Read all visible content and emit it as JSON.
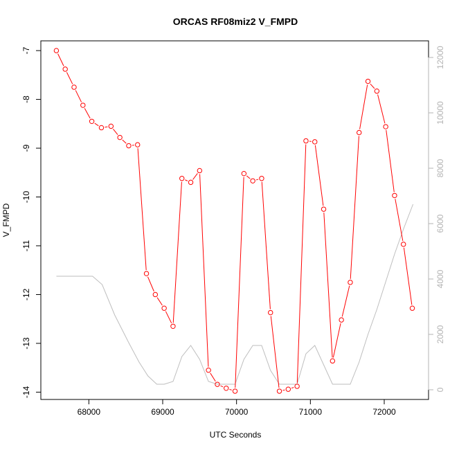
{
  "chart_data": {
    "type": "line",
    "title": "ORCAS RF08miz2 V_FMPD",
    "xlabel": "UTC Seconds",
    "ylabel": "V_FMPD",
    "xlim": [
      67350,
      72600
    ],
    "ylim": [
      -14.15,
      -6.8
    ],
    "y2lim": [
      -350,
      12600
    ],
    "x_ticks": [
      68000,
      69000,
      70000,
      71000,
      72000
    ],
    "y_ticks": [
      -14,
      -13,
      -12,
      -11,
      -10,
      -9,
      -8,
      -7
    ],
    "y2_ticks": [
      0,
      2000,
      4000,
      6000,
      8000,
      10000,
      12000
    ],
    "legend": "none",
    "grid": false,
    "series": [
      {
        "axis": "left",
        "color": "#ff0000",
        "style": "line+circle",
        "x": [
          67560,
          67680,
          67800,
          67920,
          68040,
          68170,
          68300,
          68420,
          68540,
          68660,
          68780,
          68900,
          69020,
          69140,
          69260,
          69380,
          69500,
          69620,
          69740,
          69860,
          69980,
          70100,
          70220,
          70340,
          70460,
          70580,
          70700,
          70820,
          70940,
          71060,
          71180,
          71300,
          71420,
          71540,
          71660,
          71780,
          71900,
          72020,
          72140,
          72260,
          72380
        ],
        "y": [
          -7.0,
          -7.38,
          -7.75,
          -8.12,
          -8.45,
          -8.58,
          -8.55,
          -8.78,
          -8.95,
          -8.93,
          -11.57,
          -12.0,
          -12.28,
          -12.65,
          -9.62,
          -9.7,
          -9.46,
          -13.55,
          -13.84,
          -13.92,
          -13.98,
          -9.52,
          -9.67,
          -9.62,
          -12.37,
          -13.98,
          -13.94,
          -13.88,
          -8.85,
          -8.87,
          -10.25,
          -13.36,
          -12.52,
          -11.75,
          -8.68,
          -7.63,
          -7.83,
          -8.56,
          -9.97,
          -10.97,
          -12.28
        ]
      },
      {
        "axis": "right",
        "color": "#bebebe",
        "style": "line",
        "x": [
          67560,
          67800,
          68050,
          68180,
          68350,
          68540,
          68680,
          68800,
          68920,
          69020,
          69140,
          69260,
          69380,
          69500,
          69620,
          69740,
          69860,
          69980,
          70100,
          70220,
          70340,
          70460,
          70580,
          70700,
          70820,
          70940,
          71060,
          71180,
          71300,
          71420,
          71540,
          71660,
          71780,
          71900,
          72020,
          72140,
          72260,
          72390
        ],
        "y": [
          4100,
          4100,
          4100,
          3800,
          2700,
          1700,
          1000,
          500,
          200,
          200,
          300,
          1200,
          1600,
          1100,
          300,
          200,
          200,
          200,
          1100,
          1600,
          1600,
          700,
          200,
          200,
          200,
          1300,
          1600,
          900,
          200,
          200,
          200,
          1000,
          2000,
          2900,
          3900,
          4900,
          5800,
          6700
        ]
      }
    ]
  }
}
